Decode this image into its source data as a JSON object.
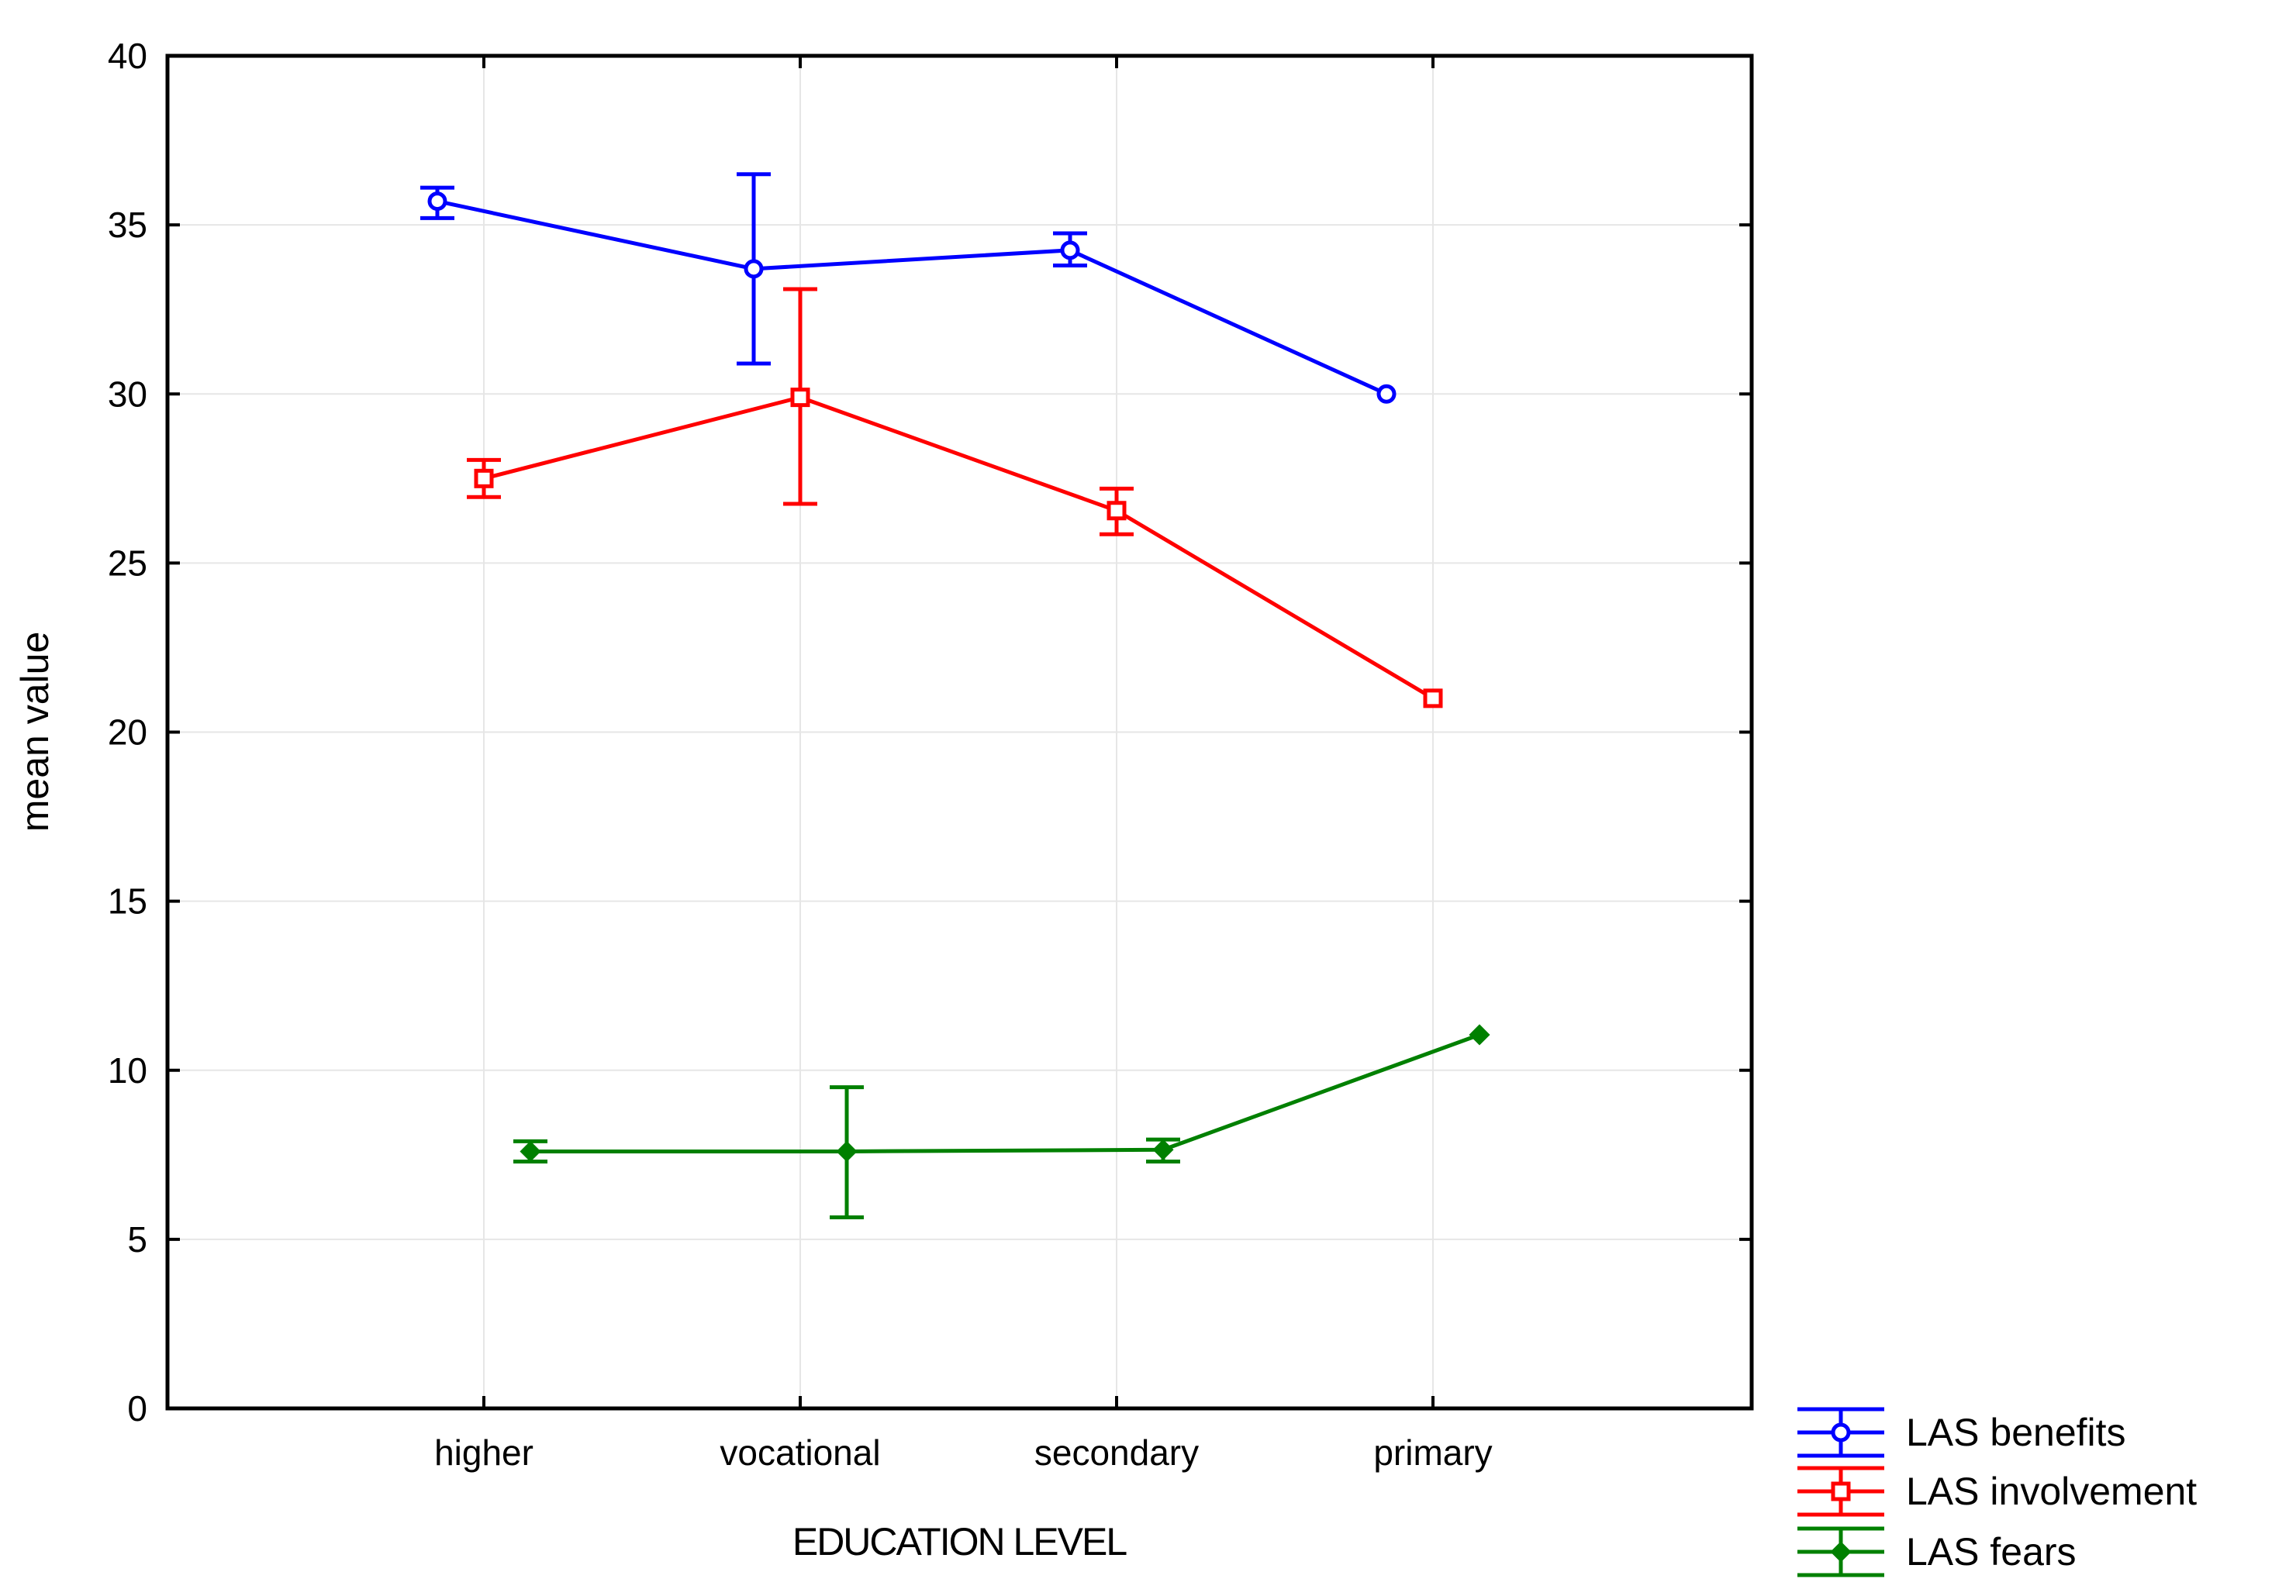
{
  "chart_data": {
    "type": "line",
    "title": "",
    "xlabel": "EDUCATION LEVEL",
    "ylabel": "mean value",
    "categories": [
      "higher",
      "vocational",
      "secondary",
      "primary"
    ],
    "ylim": [
      0,
      40
    ],
    "yticks": [
      0,
      5,
      10,
      15,
      20,
      25,
      30,
      35,
      40
    ],
    "grid": true,
    "error_bars": true,
    "legend_position": "bottom-right, outside plot",
    "series": [
      {
        "name": "LAS benefits",
        "color": "#0000ff",
        "marker": "circle",
        "values": [
          35.7,
          33.7,
          34.25,
          30.0
        ],
        "error_low": [
          35.2,
          30.9,
          33.8,
          null
        ],
        "error_high": [
          36.1,
          36.5,
          34.75,
          null
        ]
      },
      {
        "name": "LAS involvement",
        "color": "#ff0000",
        "marker": "square",
        "values": [
          27.5,
          29.9,
          26.55,
          21.0
        ],
        "error_low": [
          26.95,
          26.75,
          25.85,
          null
        ],
        "error_high": [
          28.05,
          33.1,
          27.2,
          null
        ]
      },
      {
        "name": "LAS fears",
        "color": "#008000",
        "marker": "diamond",
        "values": [
          7.6,
          7.6,
          7.65,
          11.05
        ],
        "error_low": [
          7.3,
          5.65,
          7.3,
          null
        ],
        "error_high": [
          7.9,
          9.5,
          7.95,
          null
        ]
      }
    ]
  }
}
